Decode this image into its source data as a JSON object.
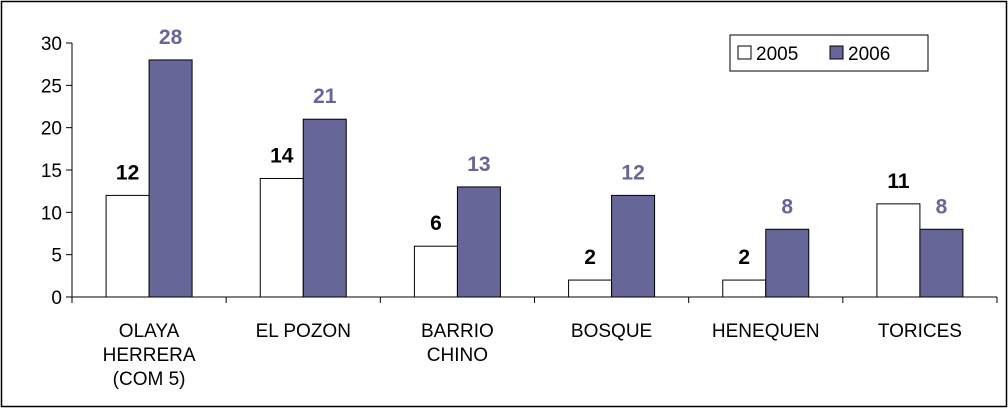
{
  "chart_data": {
    "type": "bar",
    "categories": [
      [
        "OLAYA",
        "HERRERA",
        "(COM 5)"
      ],
      [
        "EL POZON"
      ],
      [
        "BARRIO",
        "CHINO"
      ],
      [
        "BOSQUE"
      ],
      [
        "HENEQUEN"
      ],
      [
        "TORICES"
      ]
    ],
    "series": [
      {
        "name": "2005",
        "values": [
          12,
          14,
          6,
          2,
          2,
          11
        ],
        "fill": "#ffffff",
        "label_color": "#000000"
      },
      {
        "name": "2006",
        "values": [
          28,
          21,
          13,
          12,
          8,
          8
        ],
        "fill": "#666699",
        "label_color": "#666699"
      }
    ],
    "ylim": [
      0,
      30
    ],
    "yticks": [
      0,
      5,
      10,
      15,
      20,
      25,
      30
    ],
    "grid": false,
    "legend_position": "top-right",
    "data_labels": true
  }
}
